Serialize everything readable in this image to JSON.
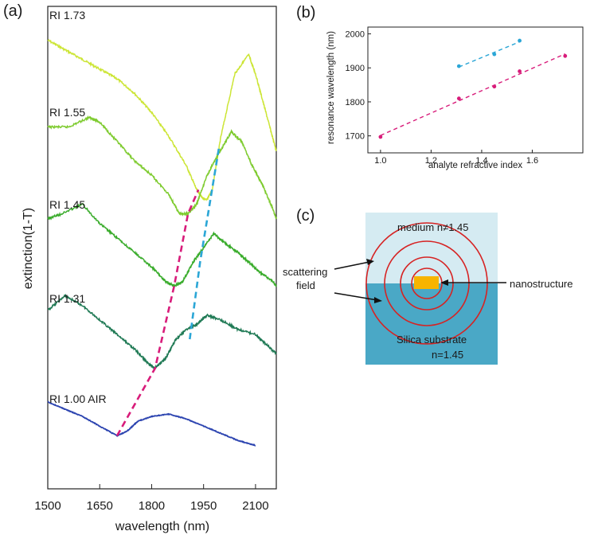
{
  "chart_data": [
    {
      "panel": "(a)",
      "type": "line",
      "xlabel": "wavelength (nm)",
      "ylabel": "extinction(1-T)",
      "xlim": [
        1500,
        2160
      ],
      "xticks": [
        1500,
        1650,
        1800,
        1950,
        2100
      ],
      "y_units": "offset stacked, no tick labels",
      "series": [
        {
          "name": "RI 1.73",
          "color": "#cce535",
          "x": [
            1500,
            1550,
            1600,
            1650,
            1700,
            1750,
            1800,
            1850,
            1900,
            1930,
            1950,
            1960,
            1975,
            2000,
            2040,
            2080,
            2100,
            2130,
            2160
          ],
          "y": [
            0.93,
            0.91,
            0.89,
            0.87,
            0.85,
            0.82,
            0.78,
            0.73,
            0.67,
            0.62,
            0.6,
            0.6,
            0.62,
            0.73,
            0.86,
            0.9,
            0.86,
            0.78,
            0.7
          ]
        },
        {
          "name": "RI 1.55",
          "color": "#7ecb2f",
          "x": [
            1500,
            1560,
            1620,
            1650,
            1700,
            1750,
            1800,
            1850,
            1880,
            1905,
            1930,
            1960,
            1990,
            2030,
            2060,
            2090,
            2120,
            2150,
            2160
          ],
          "y": [
            0.75,
            0.75,
            0.77,
            0.76,
            0.72,
            0.68,
            0.65,
            0.61,
            0.57,
            0.57,
            0.59,
            0.65,
            0.69,
            0.74,
            0.72,
            0.67,
            0.63,
            0.58,
            0.56
          ]
        },
        {
          "name": "RI 1.45",
          "color": "#3aac2c",
          "x": [
            1500,
            1540,
            1600,
            1650,
            1700,
            1750,
            1800,
            1840,
            1865,
            1890,
            1920,
            1950,
            1980,
            2010,
            2050,
            2080,
            2110,
            2150,
            2160
          ],
          "y": [
            0.56,
            0.57,
            0.59,
            0.55,
            0.52,
            0.49,
            0.46,
            0.43,
            0.42,
            0.43,
            0.47,
            0.5,
            0.53,
            0.51,
            0.49,
            0.47,
            0.45,
            0.43,
            0.42
          ]
        },
        {
          "name": "RI 1.31",
          "color": "#207a55",
          "x": [
            1500,
            1550,
            1600,
            1650,
            1700,
            1750,
            1790,
            1810,
            1840,
            1870,
            1900,
            1930,
            1960,
            2000,
            2050,
            2100,
            2130,
            2160
          ],
          "y": [
            0.37,
            0.4,
            0.38,
            0.35,
            0.32,
            0.29,
            0.26,
            0.25,
            0.27,
            0.31,
            0.33,
            0.34,
            0.36,
            0.35,
            0.33,
            0.32,
            0.3,
            0.28
          ]
        },
        {
          "name": "RI 1.00 AIR",
          "color": "#2c44b0",
          "x": [
            1500,
            1550,
            1600,
            1650,
            1700,
            1730,
            1760,
            1800,
            1850,
            1900,
            1950,
            2000,
            2050,
            2100
          ],
          "y": [
            0.18,
            0.165,
            0.15,
            0.13,
            0.11,
            0.12,
            0.14,
            0.15,
            0.155,
            0.145,
            0.13,
            0.115,
            0.1,
            0.09
          ]
        }
      ],
      "guides": [
        {
          "color": "#d81c7a",
          "style": "dashed",
          "x": [
            1700,
            1810,
            1865,
            1905,
            1935
          ],
          "y": [
            0.11,
            0.25,
            0.42,
            0.57,
            0.62
          ]
        },
        {
          "color": "#2ba6d6",
          "style": "dashed",
          "x": [
            1910,
            1940,
            1995
          ],
          "y": [
            0.31,
            0.47,
            0.71
          ]
        }
      ]
    },
    {
      "panel": "(b)",
      "type": "scatter",
      "xlabel": "analyte refractive index",
      "ylabel": "resonance wavelength (nm)",
      "xlim": [
        0.95,
        1.8
      ],
      "ylim": [
        1650,
        2020
      ],
      "xticks": [
        1.0,
        1.2,
        1.4,
        1.6
      ],
      "yticks": [
        1700,
        1800,
        1900,
        2000
      ],
      "series": [
        {
          "name": "",
          "color": "#d81c7a",
          "x": [
            1.0,
            1.31,
            1.45,
            1.55,
            1.73
          ],
          "y": [
            1697,
            1810,
            1845,
            1890,
            1935
          ],
          "fit": "dashed"
        },
        {
          "name": "",
          "color": "#2ba6d6",
          "x": [
            1.31,
            1.45,
            1.55
          ],
          "y": [
            1905,
            1940,
            1980
          ],
          "fit": "dashed"
        }
      ]
    }
  ],
  "panels": {
    "a_label": "(a)",
    "b_label": "(b)",
    "c_label": "(c)"
  },
  "schematic": {
    "medium_label": "medium n≠1.45",
    "substrate_label": "Silica substrate",
    "substrate_index": "n=1.45",
    "scattering_label_1": "scattering",
    "scattering_label_2": "field",
    "nanostructure_label": "nanostructure",
    "medium_color": "#d5ebf2",
    "substrate_color": "#4aa8c6",
    "ring_color": "#d62323",
    "nanostructure_color": "#f7b400"
  }
}
